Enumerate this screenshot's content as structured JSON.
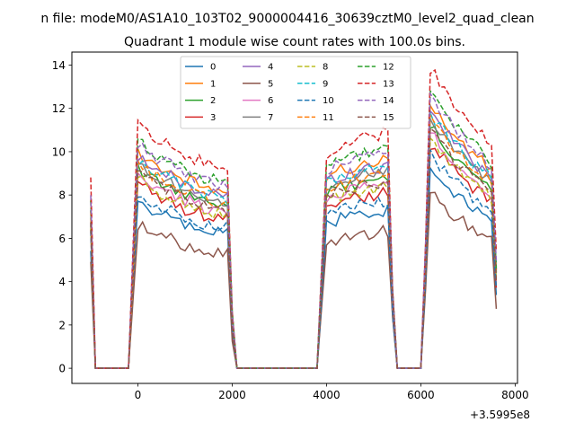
{
  "chart_data": {
    "type": "line",
    "suptitle": "n file: modeM0/AS1A10_103T02_9000004416_30639cztM0_level2_quad_clean",
    "title": "Quadrant 1 module wise count rates with 100.0s bins.",
    "xlabel": "",
    "ylabel": "",
    "x_offset_label": "+3.5995e8",
    "xlim": [
      -1400,
      8050
    ],
    "ylim": [
      -0.7,
      14.6
    ],
    "xticks": [
      0,
      2000,
      4000,
      6000,
      8000
    ],
    "yticks": [
      0,
      2,
      4,
      6,
      8,
      10,
      12,
      14
    ],
    "x": [
      -1000,
      -900,
      -800,
      -700,
      -600,
      -500,
      -400,
      -300,
      -200,
      -100,
      0,
      100,
      200,
      300,
      400,
      500,
      600,
      700,
      800,
      900,
      1000,
      1100,
      1200,
      1300,
      1400,
      1500,
      1600,
      1700,
      1800,
      1900,
      2000,
      2100,
      2200,
      2300,
      2400,
      2500,
      2600,
      2700,
      2800,
      2900,
      3000,
      3100,
      3200,
      3300,
      3400,
      3500,
      3600,
      3700,
      3800,
      3900,
      4000,
      4100,
      4200,
      4300,
      4400,
      4500,
      4600,
      4700,
      4800,
      4900,
      5000,
      5100,
      5200,
      5300,
      5400,
      5500,
      5600,
      5700,
      5800,
      5900,
      6000,
      6100,
      6200,
      6300,
      6400,
      6500,
      6600,
      6700,
      6800,
      6900,
      7000,
      7100,
      7200,
      7300,
      7400,
      7500,
      7600
    ],
    "base": [
      6.5,
      0,
      0,
      0,
      0,
      0,
      0,
      0,
      0,
      4.2,
      8.6,
      8.5,
      8.4,
      8.2,
      8.1,
      8.0,
      7.9,
      7.8,
      7.7,
      7.6,
      7.5,
      7.5,
      7.4,
      7.3,
      7.2,
      7.2,
      7.1,
      7.1,
      7.0,
      7.0,
      2.0,
      0,
      0,
      0,
      0,
      0,
      0,
      0,
      0,
      0,
      0,
      0,
      0,
      0,
      0,
      0,
      0,
      0,
      0,
      3.8,
      7.6,
      7.7,
      7.8,
      7.9,
      7.9,
      8.0,
      8.0,
      8.1,
      8.1,
      8.2,
      8.2,
      8.2,
      8.3,
      8.3,
      3.0,
      0,
      0,
      0,
      0,
      0,
      0,
      4.5,
      10.6,
      10.3,
      10.0,
      9.8,
      9.5,
      9.3,
      9.1,
      8.9,
      8.7,
      8.5,
      8.3,
      8.2,
      8.0,
      7.8,
      4.0
    ],
    "series": [
      {
        "name": "0",
        "color": "#1f77b4",
        "dash": "solid",
        "scale": 0.88,
        "offset": 0.0
      },
      {
        "name": "1",
        "color": "#ff7f0e",
        "dash": "solid",
        "scale": 1.16,
        "offset": 0.0
      },
      {
        "name": "2",
        "color": "#2ca02c",
        "dash": "solid",
        "scale": 1.06,
        "offset": 0.0
      },
      {
        "name": "3",
        "color": "#d62728",
        "dash": "solid",
        "scale": 0.98,
        "offset": 0.0
      },
      {
        "name": "4",
        "color": "#9467bd",
        "dash": "solid",
        "scale": 1.13,
        "offset": 0.0
      },
      {
        "name": "5",
        "color": "#8c564b",
        "dash": "solid",
        "scale": 0.76,
        "offset": 0.0
      },
      {
        "name": "6",
        "color": "#e377c2",
        "dash": "solid",
        "scale": 1.03,
        "offset": 0.0
      },
      {
        "name": "7",
        "color": "#7f7f7f",
        "dash": "solid",
        "scale": 1.1,
        "offset": 0.0
      },
      {
        "name": "8",
        "color": "#bcbd22",
        "dash": "dashed",
        "scale": 1.01,
        "offset": 0.0
      },
      {
        "name": "9",
        "color": "#17becf",
        "dash": "dashed",
        "scale": 1.12,
        "offset": 0.0
      },
      {
        "name": "10",
        "color": "#1f77b4",
        "dash": "dashed",
        "scale": 0.93,
        "offset": 0.0
      },
      {
        "name": "11",
        "color": "#ff7f0e",
        "dash": "dashed",
        "scale": 1.09,
        "offset": 0.0
      },
      {
        "name": "12",
        "color": "#2ca02c",
        "dash": "dashed",
        "scale": 1.22,
        "offset": 0.0
      },
      {
        "name": "13",
        "color": "#d62728",
        "dash": "dashed",
        "scale": 1.31,
        "offset": 0.0
      },
      {
        "name": "14",
        "color": "#9467bd",
        "dash": "dashed",
        "scale": 1.2,
        "offset": 0.0
      },
      {
        "name": "15",
        "color": "#8c564b",
        "dash": "dashed",
        "scale": 1.04,
        "offset": 0.0
      }
    ],
    "legend_location": "upper-center",
    "legend_columns": 4,
    "grid": false
  }
}
